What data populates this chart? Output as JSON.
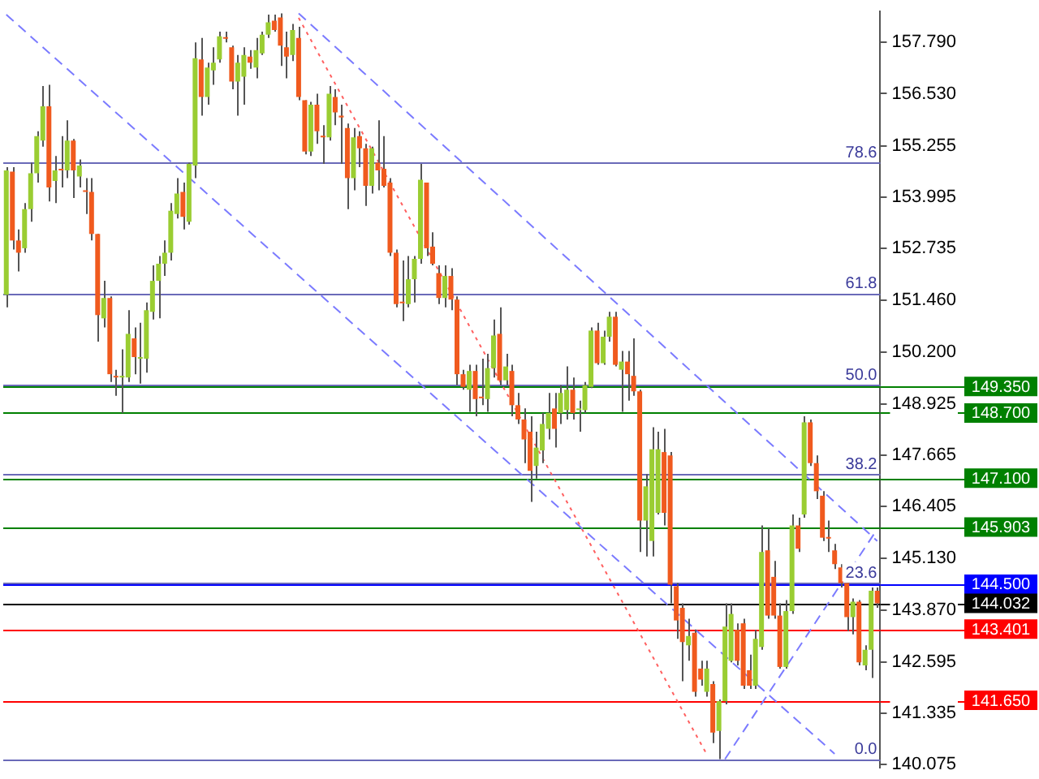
{
  "chart_data": {
    "type": "candlestick",
    "categories": [
      null,
      null,
      null,
      null,
      null,
      null,
      null,
      null,
      null,
      null,
      null,
      null,
      null,
      null,
      null,
      null,
      null,
      null,
      null,
      null,
      null,
      null,
      null,
      null,
      null,
      null,
      null,
      null,
      null,
      null,
      null,
      null,
      null,
      null,
      null,
      null,
      null,
      null,
      null,
      null,
      null,
      null,
      null,
      null,
      null,
      null,
      null,
      null,
      null,
      null,
      null,
      null,
      null,
      null,
      null,
      null,
      null,
      null,
      null,
      null,
      null,
      null,
      null,
      null,
      null,
      null,
      null,
      null,
      null,
      null,
      null,
      null,
      null,
      null,
      null,
      null,
      null,
      null,
      null,
      null,
      null,
      null,
      null,
      null,
      null,
      null,
      null,
      null,
      null,
      null,
      null,
      null,
      null,
      null,
      null,
      null,
      null,
      null,
      null,
      null,
      null,
      null,
      null,
      null,
      null,
      null,
      null,
      null,
      null,
      null,
      null,
      null,
      null,
      null,
      null,
      null,
      null,
      null,
      null,
      null,
      null,
      null,
      null,
      null,
      null,
      null,
      null,
      null,
      null,
      null,
      null,
      null,
      null,
      null,
      null,
      null,
      null,
      null,
      null,
      null,
      null,
      null,
      null,
      null
    ],
    "ohlc": [
      [
        151.6,
        154.73,
        151.29,
        154.65
      ],
      [
        154.62,
        154.73,
        152.71,
        152.93
      ],
      [
        152.93,
        153.2,
        152.17,
        152.63
      ],
      [
        152.74,
        153.85,
        152.63,
        153.7
      ],
      [
        153.7,
        154.84,
        153.39,
        154.58
      ],
      [
        154.58,
        155.61,
        154.35,
        155.49
      ],
      [
        155.38,
        156.72,
        155.23,
        156.22
      ],
      [
        156.22,
        156.75,
        153.89,
        154.23
      ],
      [
        154.39,
        155.0,
        153.85,
        154.65
      ],
      [
        154.69,
        155.49,
        154.23,
        154.65
      ],
      [
        154.65,
        155.88,
        154.46,
        155.38
      ],
      [
        155.38,
        155.42,
        153.97,
        154.65
      ],
      [
        154.5,
        154.92,
        154.23,
        154.77
      ],
      [
        154.16,
        154.46,
        153.58,
        154.12
      ],
      [
        154.12,
        154.46,
        152.93,
        153.09
      ],
      [
        153.09,
        153.09,
        150.45,
        151.1
      ],
      [
        151.02,
        151.94,
        150.8,
        151.52
      ],
      [
        151.52,
        151.56,
        149.46,
        149.65
      ],
      [
        149.61,
        149.76,
        149.12,
        149.57
      ],
      [
        149.57,
        150.26,
        148.7,
        149.61
      ],
      [
        149.57,
        151.22,
        149.46,
        150.64
      ],
      [
        150.53,
        150.8,
        149.65,
        150.07
      ],
      [
        150.03,
        150.91,
        149.42,
        150.07
      ],
      [
        150.03,
        151.41,
        149.69,
        151.22
      ],
      [
        151.18,
        152.32,
        150.99,
        151.94
      ],
      [
        151.94,
        152.55,
        151.02,
        152.36
      ],
      [
        152.36,
        152.93,
        152.06,
        152.63
      ],
      [
        152.63,
        153.85,
        152.44,
        153.66
      ],
      [
        153.58,
        154.46,
        153.47,
        154.08
      ],
      [
        154.12,
        154.35,
        153.2,
        153.51
      ],
      [
        153.39,
        154.84,
        153.32,
        154.81
      ],
      [
        154.77,
        157.79,
        154.46,
        157.4
      ],
      [
        157.37,
        157.9,
        155.99,
        156.45
      ],
      [
        156.45,
        157.29,
        156.26,
        157.17
      ],
      [
        157.1,
        157.67,
        156.75,
        157.29
      ],
      [
        157.37,
        158.05,
        157.29,
        157.94
      ],
      [
        157.9,
        158.05,
        157.79,
        157.88
      ],
      [
        157.67,
        157.71,
        156.64,
        156.83
      ],
      [
        156.83,
        157.48,
        155.99,
        157.29
      ],
      [
        156.95,
        157.67,
        156.26,
        157.48
      ],
      [
        157.44,
        157.6,
        157.14,
        157.29
      ],
      [
        157.17,
        157.9,
        156.91,
        157.6
      ],
      [
        157.52,
        158.05,
        157.48,
        157.98
      ],
      [
        157.98,
        158.47,
        157.9,
        158.28
      ],
      [
        158.32,
        158.47,
        158.05,
        158.09
      ],
      [
        158.4,
        158.5,
        157.21,
        157.71
      ],
      [
        157.67,
        158.05,
        156.91,
        157.44
      ],
      [
        157.48,
        158.24,
        157.33,
        158.09
      ],
      [
        157.9,
        158.17,
        156.37,
        156.45
      ],
      [
        156.37,
        156.37,
        155.04,
        155.11
      ],
      [
        155.11,
        156.33,
        155.0,
        156.26
      ],
      [
        156.26,
        156.53,
        155.3,
        155.61
      ],
      [
        155.49,
        155.76,
        154.81,
        155.46
      ],
      [
        155.46,
        156.72,
        155.38,
        156.53
      ],
      [
        156.45,
        156.64,
        155.76,
        156.07
      ],
      [
        155.99,
        156.26,
        154.81,
        155.95
      ],
      [
        155.69,
        155.8,
        153.7,
        154.46
      ],
      [
        154.46,
        155.69,
        154.16,
        155.46
      ],
      [
        155.49,
        155.61,
        154.73,
        155.19
      ],
      [
        155.19,
        155.3,
        153.78,
        154.27
      ],
      [
        154.27,
        155.23,
        154.08,
        155.19
      ],
      [
        154.84,
        155.88,
        154.16,
        154.65
      ],
      [
        154.69,
        155.49,
        154.23,
        154.27
      ],
      [
        154.35,
        154.46,
        152.55,
        152.63
      ],
      [
        152.63,
        152.71,
        151.29,
        151.37
      ],
      [
        151.41,
        152.44,
        150.95,
        151.39
      ],
      [
        151.37,
        152.55,
        151.29,
        151.98
      ],
      [
        151.98,
        152.55,
        151.41,
        152.48
      ],
      [
        152.48,
        154.81,
        152.36,
        154.42
      ],
      [
        154.35,
        154.35,
        152.55,
        152.74
      ],
      [
        152.78,
        153.13,
        152.32,
        152.36
      ],
      [
        152.13,
        152.32,
        151.37,
        151.52
      ],
      [
        151.52,
        152.32,
        151.29,
        152.06
      ],
      [
        152.06,
        152.25,
        151.22,
        151.48
      ],
      [
        151.48,
        151.56,
        149.38,
        149.65
      ],
      [
        149.65,
        149.76,
        149.27,
        149.34
      ],
      [
        149.27,
        149.88,
        148.73,
        149.73
      ],
      [
        149.73,
        149.88,
        148.62,
        149.04
      ],
      [
        149.08,
        150.03,
        148.89,
        149.06
      ],
      [
        149.04,
        150.15,
        148.73,
        149.8
      ],
      [
        149.8,
        150.99,
        149.57,
        150.6
      ],
      [
        150.64,
        151.29,
        149.38,
        149.5
      ],
      [
        149.5,
        150.15,
        149.38,
        149.84
      ],
      [
        149.73,
        149.88,
        148.62,
        148.89
      ],
      [
        148.89,
        149.19,
        148.43,
        148.54
      ],
      [
        148.54,
        148.81,
        147.47,
        148.05
      ],
      [
        148.24,
        148.62,
        146.52,
        147.28
      ],
      [
        147.4,
        148.24,
        147.09,
        147.85
      ],
      [
        147.78,
        148.7,
        147.47,
        148.43
      ],
      [
        148.31,
        149.19,
        148.05,
        148.7
      ],
      [
        148.81,
        149.19,
        147.85,
        148.31
      ],
      [
        148.7,
        149.38,
        148.43,
        149.19
      ],
      [
        148.77,
        149.84,
        148.54,
        149.27
      ],
      [
        149.27,
        149.57,
        148.54,
        148.7
      ],
      [
        148.77,
        149.0,
        148.24,
        148.81
      ],
      [
        148.77,
        149.46,
        148.7,
        149.38
      ],
      [
        149.34,
        150.8,
        149.31,
        150.72
      ],
      [
        150.72,
        150.91,
        149.88,
        149.92
      ],
      [
        149.92,
        150.72,
        149.88,
        150.57
      ],
      [
        150.57,
        151.18,
        150.45,
        151.06
      ],
      [
        151.06,
        151.18,
        149.84,
        149.88
      ],
      [
        149.76,
        150.22,
        148.73,
        149.96
      ],
      [
        149.96,
        150.22,
        149.0,
        149.65
      ],
      [
        149.61,
        150.53,
        149.12,
        149.23
      ],
      [
        149.23,
        149.27,
        145.29,
        146.06
      ],
      [
        146.06,
        147.2,
        145.18,
        146.9
      ],
      [
        145.56,
        148.35,
        145.18,
        147.81
      ],
      [
        146.25,
        148.24,
        146.21,
        147.81
      ],
      [
        147.74,
        148.31,
        145.94,
        146.25
      ],
      [
        147.66,
        147.74,
        144.03,
        144.49
      ],
      [
        144.45,
        144.53,
        143.16,
        143.61
      ],
      [
        143.92,
        144.03,
        142.12,
        143.08
      ],
      [
        143.0,
        143.65,
        142.62,
        143.23
      ],
      [
        143.31,
        143.39,
        141.74,
        141.86
      ],
      [
        142.43,
        142.62,
        142.01,
        142.16
      ],
      [
        141.86,
        142.62,
        141.74,
        142.43
      ],
      [
        142.05,
        142.12,
        140.6,
        140.86
      ],
      [
        140.9,
        141.67,
        140.21,
        141.63
      ],
      [
        141.63,
        144.03,
        141.55,
        143.46
      ],
      [
        142.62,
        144.03,
        142.58,
        143.77
      ],
      [
        143.38,
        143.54,
        142.51,
        142.62
      ],
      [
        143.54,
        143.65,
        141.93,
        142.01
      ],
      [
        142.39,
        142.77,
        141.93,
        142.01
      ],
      [
        142.01,
        143.38,
        141.93,
        143.16
      ],
      [
        142.96,
        145.94,
        142.89,
        145.29
      ],
      [
        145.33,
        145.87,
        143.65,
        143.73
      ],
      [
        144.68,
        145.07,
        143.65,
        143.73
      ],
      [
        143.73,
        144.03,
        142.43,
        142.47
      ],
      [
        142.47,
        144.11,
        142.43,
        143.84
      ],
      [
        143.84,
        146.21,
        143.77,
        145.94
      ],
      [
        145.94,
        146.13,
        145.29,
        145.37
      ],
      [
        146.21,
        148.62,
        146.13,
        148.47
      ],
      [
        148.47,
        148.54,
        147.4,
        147.47
      ],
      [
        147.47,
        147.66,
        146.59,
        146.78
      ],
      [
        146.67,
        146.78,
        145.56,
        145.64
      ],
      [
        145.64,
        146.06,
        145.29,
        145.62
      ],
      [
        145.33,
        145.49,
        144.87,
        144.99
      ],
      [
        144.91,
        144.99,
        144.42,
        144.53
      ],
      [
        144.53,
        144.53,
        143.35,
        143.69
      ],
      [
        143.69,
        144.15,
        143.27,
        144.07
      ],
      [
        144.07,
        144.11,
        142.51,
        142.58
      ],
      [
        142.51,
        143.0,
        142.39,
        142.89
      ],
      [
        142.89,
        144.42,
        142.2,
        144.34
      ],
      [
        144.34,
        144.42,
        143.92,
        144.03
      ]
    ],
    "colors": [
      "#9acd32",
      "#f05a1e",
      "#f05a1e",
      "#9acd32",
      "#9acd32",
      "#9acd32",
      "#9acd32",
      "#f05a1e",
      "#9acd32",
      "#f05a1e",
      "#9acd32",
      "#f05a1e",
      "#9acd32",
      "#f05a1e",
      "#f05a1e",
      "#f05a1e",
      "#9acd32",
      "#f05a1e",
      "#f05a1e",
      "#9acd32",
      "#9acd32",
      "#f05a1e",
      "#9acd32",
      "#9acd32",
      "#9acd32",
      "#9acd32",
      "#9acd32",
      "#9acd32",
      "#9acd32",
      "#f05a1e",
      "#9acd32",
      "#9acd32",
      "#f05a1e",
      "#9acd32",
      "#9acd32",
      "#9acd32",
      "#f05a1e",
      "#f05a1e",
      "#9acd32",
      "#9acd32",
      "#f05a1e",
      "#9acd32",
      "#9acd32",
      "#9acd32",
      "#f05a1e",
      "#f05a1e",
      "#f05a1e",
      "#9acd32",
      "#f05a1e",
      "#f05a1e",
      "#9acd32",
      "#f05a1e",
      "#f05a1e",
      "#9acd32",
      "#f05a1e",
      "#f05a1e",
      "#f05a1e",
      "#9acd32",
      "#f05a1e",
      "#f05a1e",
      "#9acd32",
      "#f05a1e",
      "#f05a1e",
      "#f05a1e",
      "#f05a1e",
      "#f05a1e",
      "#9acd32",
      "#9acd32",
      "#9acd32",
      "#f05a1e",
      "#f05a1e",
      "#f05a1e",
      "#9acd32",
      "#f05a1e",
      "#f05a1e",
      "#f05a1e",
      "#9acd32",
      "#f05a1e",
      "#f05a1e",
      "#9acd32",
      "#9acd32",
      "#f05a1e",
      "#9acd32",
      "#f05a1e",
      "#f05a1e",
      "#f05a1e",
      "#f05a1e",
      "#9acd32",
      "#9acd32",
      "#9acd32",
      "#f05a1e",
      "#9acd32",
      "#9acd32",
      "#f05a1e",
      "#9acd32",
      "#9acd32",
      "#9acd32",
      "#f05a1e",
      "#9acd32",
      "#9acd32",
      "#f05a1e",
      "#9acd32",
      "#f05a1e",
      "#f05a1e",
      "#f05a1e",
      "#9acd32",
      "#9acd32",
      "#9acd32",
      "#f05a1e",
      "#f05a1e",
      "#f05a1e",
      "#f05a1e",
      "#9acd32",
      "#f05a1e",
      "#f05a1e",
      "#9acd32",
      "#f05a1e",
      "#9acd32",
      "#9acd32",
      "#9acd32",
      "#f05a1e",
      "#f05a1e",
      "#f05a1e",
      "#9acd32",
      "#9acd32",
      "#f05a1e",
      "#f05a1e",
      "#f05a1e",
      "#9acd32",
      "#9acd32",
      "#f05a1e",
      "#9acd32",
      "#f05a1e",
      "#f05a1e",
      "#f05a1e",
      "#f05a1e",
      "#f05a1e",
      "#f05a1e",
      "#f05a1e",
      "#9acd32",
      "#f05a1e",
      "#9acd32",
      "#9acd32",
      "#f05a1e"
    ],
    "series": [
      {
        "type": "line",
        "color": "#7b7bff",
        "line_style": "dashed",
        "values": [
          null,
          null,
          null,
          null,
          null,
          null,
          null,
          null,
          null,
          null,
          null,
          null,
          null,
          null,
          null,
          null,
          null,
          null,
          null,
          null,
          null,
          null,
          null,
          null,
          null,
          null,
          null,
          null,
          null,
          null,
          null,
          null,
          null,
          null,
          null,
          null,
          null,
          null,
          null,
          null,
          null,
          null,
          null,
          null,
          null,
          null,
          null,
          null,
          158.5,
          null,
          null,
          null,
          null,
          null,
          null,
          null,
          null,
          null,
          null,
          null,
          null,
          null,
          null,
          null,
          null,
          null,
          null,
          null,
          null,
          null,
          null,
          null,
          null,
          null,
          null,
          null,
          null,
          null,
          null,
          null,
          null,
          null,
          null,
          null,
          null,
          null,
          null,
          null,
          null,
          null,
          null,
          null,
          null,
          null,
          null,
          null,
          null,
          null,
          null,
          null,
          null,
          null,
          null,
          null,
          null,
          null,
          null,
          null,
          null,
          null,
          null,
          null,
          null,
          null,
          null,
          null,
          null,
          null,
          null,
          null,
          null,
          null,
          null,
          null,
          null,
          null,
          null,
          null,
          null,
          null,
          null,
          null,
          null,
          null,
          null,
          null,
          null,
          null,
          null,
          null,
          null,
          null,
          null,
          145.56
        ]
      },
      {
        "type": "line",
        "color": "#7b7bff",
        "line_style": "dashed",
        "values": [
          158.47,
          null,
          null,
          null,
          null,
          null,
          null,
          null,
          null,
          null,
          null,
          null,
          null,
          null,
          null,
          null,
          null,
          null,
          null,
          null,
          null,
          null,
          null,
          null,
          null,
          null,
          null,
          null,
          null,
          null,
          null,
          null,
          null,
          null,
          null,
          null,
          null,
          null,
          null,
          null,
          null,
          null,
          null,
          null,
          null,
          null,
          null,
          null,
          null,
          null,
          null,
          null,
          null,
          null,
          null,
          null,
          null,
          null,
          null,
          null,
          null,
          null,
          null,
          null,
          null,
          null,
          null,
          null,
          null,
          null,
          null,
          null,
          null,
          null,
          null,
          null,
          null,
          null,
          null,
          null,
          null,
          null,
          null,
          null,
          null,
          null,
          null,
          null,
          null,
          null,
          null,
          null,
          null,
          null,
          null,
          null,
          null,
          null,
          null,
          null,
          null,
          null,
          null,
          null,
          null,
          null,
          null,
          null,
          null,
          null,
          null,
          null,
          null,
          null,
          null,
          null,
          null,
          null,
          null,
          null,
          null,
          null,
          null,
          null,
          null,
          null,
          null,
          null,
          null,
          null,
          null,
          null,
          null,
          null,
          null,
          null,
          140.34,
          null,
          null,
          null,
          null,
          null,
          null,
          null
        ]
      },
      {
        "type": "line",
        "color": "#7b7bff",
        "line_style": "dashed",
        "values": [
          null,
          null,
          null,
          null,
          null,
          null,
          null,
          null,
          null,
          null,
          null,
          null,
          null,
          null,
          null,
          null,
          null,
          null,
          null,
          null,
          null,
          null,
          null,
          null,
          null,
          null,
          null,
          null,
          null,
          null,
          null,
          null,
          null,
          null,
          null,
          null,
          null,
          null,
          null,
          null,
          null,
          null,
          null,
          null,
          null,
          null,
          null,
          null,
          null,
          null,
          null,
          null,
          null,
          null,
          null,
          null,
          null,
          null,
          null,
          null,
          null,
          null,
          null,
          null,
          null,
          null,
          null,
          null,
          null,
          null,
          null,
          null,
          null,
          null,
          null,
          null,
          null,
          null,
          null,
          null,
          null,
          null,
          null,
          null,
          null,
          null,
          null,
          null,
          null,
          null,
          null,
          null,
          null,
          null,
          null,
          null,
          null,
          null,
          null,
          null,
          null,
          null,
          null,
          null,
          null,
          null,
          null,
          null,
          null,
          null,
          null,
          null,
          null,
          null,
          null,
          null,
          null,
          null,
          140.21,
          null,
          null,
          null,
          null,
          null,
          null,
          null,
          null,
          null,
          null,
          null,
          null,
          null,
          null,
          null,
          null,
          null,
          null,
          null,
          null,
          null,
          null,
          null,
          null,
          145.85
        ]
      },
      {
        "type": "line",
        "color": "#ff6060",
        "line_style": "dotted",
        "values": [
          null,
          null,
          null,
          null,
          null,
          null,
          null,
          null,
          null,
          null,
          null,
          null,
          null,
          null,
          null,
          null,
          null,
          null,
          null,
          null,
          null,
          null,
          null,
          null,
          null,
          null,
          null,
          null,
          null,
          null,
          null,
          null,
          null,
          null,
          null,
          null,
          null,
          null,
          null,
          null,
          null,
          null,
          null,
          null,
          null,
          null,
          null,
          null,
          158.39,
          null,
          null,
          null,
          null,
          null,
          null,
          null,
          null,
          null,
          null,
          null,
          null,
          null,
          null,
          null,
          null,
          null,
          null,
          null,
          null,
          null,
          null,
          null,
          null,
          null,
          null,
          null,
          null,
          null,
          null,
          null,
          null,
          null,
          null,
          null,
          null,
          null,
          null,
          null,
          null,
          null,
          null,
          null,
          null,
          null,
          null,
          null,
          null,
          null,
          null,
          null,
          null,
          null,
          null,
          null,
          null,
          null,
          null,
          null,
          null,
          null,
          null,
          null,
          null,
          null,
          null,
          140.33,
          null,
          null,
          null,
          null,
          null,
          null,
          null,
          null,
          null,
          null,
          null,
          null,
          null,
          null,
          null,
          null,
          null,
          null,
          null,
          null,
          null,
          null,
          null,
          null,
          null,
          null,
          null,
          null
        ]
      }
    ],
    "ylim": [
      140.0,
      158.55
    ],
    "yticks": [
      {
        "value": 157.79,
        "label": "157.790"
      },
      {
        "value": 156.53,
        "label": "156.530"
      },
      {
        "value": 155.255,
        "label": "155.255"
      },
      {
        "value": 153.995,
        "label": "153.995"
      },
      {
        "value": 152.735,
        "label": "152.735"
      },
      {
        "value": 151.46,
        "label": "151.460"
      },
      {
        "value": 150.2,
        "label": "150.200"
      },
      {
        "value": 148.925,
        "label": "148.925"
      },
      {
        "value": 147.665,
        "label": "147.665"
      },
      {
        "value": 146.405,
        "label": "146.405"
      },
      {
        "value": 145.13,
        "label": "145.130"
      },
      {
        "value": 143.87,
        "label": "143.870"
      },
      {
        "value": 142.595,
        "label": "142.595"
      },
      {
        "value": 141.335,
        "label": "141.335"
      },
      {
        "value": 140.075,
        "label": "140.075"
      }
    ],
    "tick_labels": "y",
    "ref_lines": [
      {
        "axis": "y",
        "value": 154.84,
        "color": "#6a6ab8"
      },
      {
        "axis": "y",
        "value": 151.64,
        "color": "#6a6ab8"
      },
      {
        "axis": "y",
        "value": 149.38,
        "color": "#6a6ab8"
      },
      {
        "axis": "y",
        "value": 147.2,
        "color": "#6a6ab8"
      },
      {
        "axis": "y",
        "value": 144.53,
        "color": "#6a6ab8"
      },
      {
        "axis": "y",
        "value": 140.21,
        "color": "#6a6ab8"
      },
      {
        "axis": "y",
        "value": 149.35,
        "label": "149.350",
        "color": "#008000"
      },
      {
        "axis": "y",
        "value": 148.7,
        "label": "148.700",
        "color": "#008000"
      },
      {
        "axis": "y",
        "value": 147.1,
        "label": "147.100",
        "color": "#008000"
      },
      {
        "axis": "y",
        "value": 145.903,
        "label": "145.903",
        "color": "#008000"
      },
      {
        "axis": "y",
        "value": 144.5,
        "label": "144.500",
        "color": "#0000ff"
      },
      {
        "axis": "y",
        "value": 144.032,
        "label": "144.032",
        "color": "#000000"
      },
      {
        "axis": "y",
        "value": 143.401,
        "label": "143.401",
        "color": "#ff0000"
      },
      {
        "axis": "y",
        "value": 141.65,
        "label": "141.650",
        "color": "#ff0000"
      }
    ],
    "annotations": [
      {
        "text": "78.6",
        "y": 154.84
      },
      {
        "text": "61.8",
        "y": 151.64
      },
      {
        "text": "50.0",
        "y": 149.38
      },
      {
        "text": "38.2",
        "y": 147.2
      },
      {
        "text": "23.6",
        "y": 144.53
      },
      {
        "text": "0.0",
        "y": 140.21
      }
    ]
  }
}
